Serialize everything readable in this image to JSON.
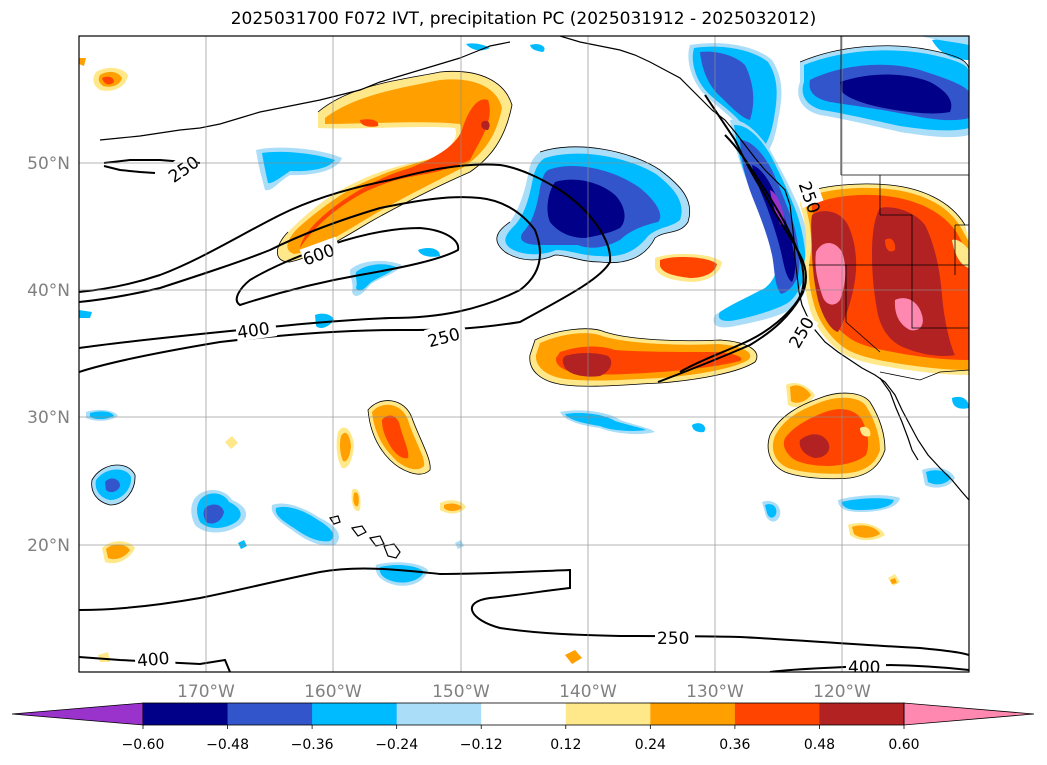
{
  "title": "2025031700 F072 IVT, precipitation PC (2025031912 - 2025032012)",
  "map": {
    "lon_ticks": [
      "170°W",
      "160°W",
      "150°W",
      "140°W",
      "130°W",
      "120°W"
    ],
    "lat_ticks": [
      "50°N",
      "40°N",
      "30°N",
      "20°N"
    ],
    "contour_labels": [
      "250",
      "600",
      "400",
      "250",
      "250",
      "250",
      "250",
      "400",
      "400"
    ]
  },
  "colorbar": {
    "ticks": [
      "−0.60",
      "−0.48",
      "−0.36",
      "−0.24",
      "−0.12",
      "0.12",
      "0.24",
      "0.36",
      "0.48",
      "0.60"
    ],
    "colors": [
      "#9933cc",
      "#000088",
      "#3355cc",
      "#00bbff",
      "#aaddf8",
      "#ffffff",
      "#ffe88a",
      "#ffa000",
      "#ff4400",
      "#b22222",
      "#ff88b0"
    ],
    "under_color": "#9933cc",
    "over_color": "#ff88b0"
  },
  "fill_colors": {
    "neg_strong": "#000088",
    "neg_mid": "#3355cc",
    "neg_light": "#00bbff",
    "neg_faint": "#aaddf8",
    "pos_faint": "#ffe88a",
    "pos_light": "#ffa000",
    "pos_mid": "#ff4400",
    "pos_strong": "#b22222",
    "pos_max": "#ff88b0",
    "purple": "#9933cc"
  }
}
